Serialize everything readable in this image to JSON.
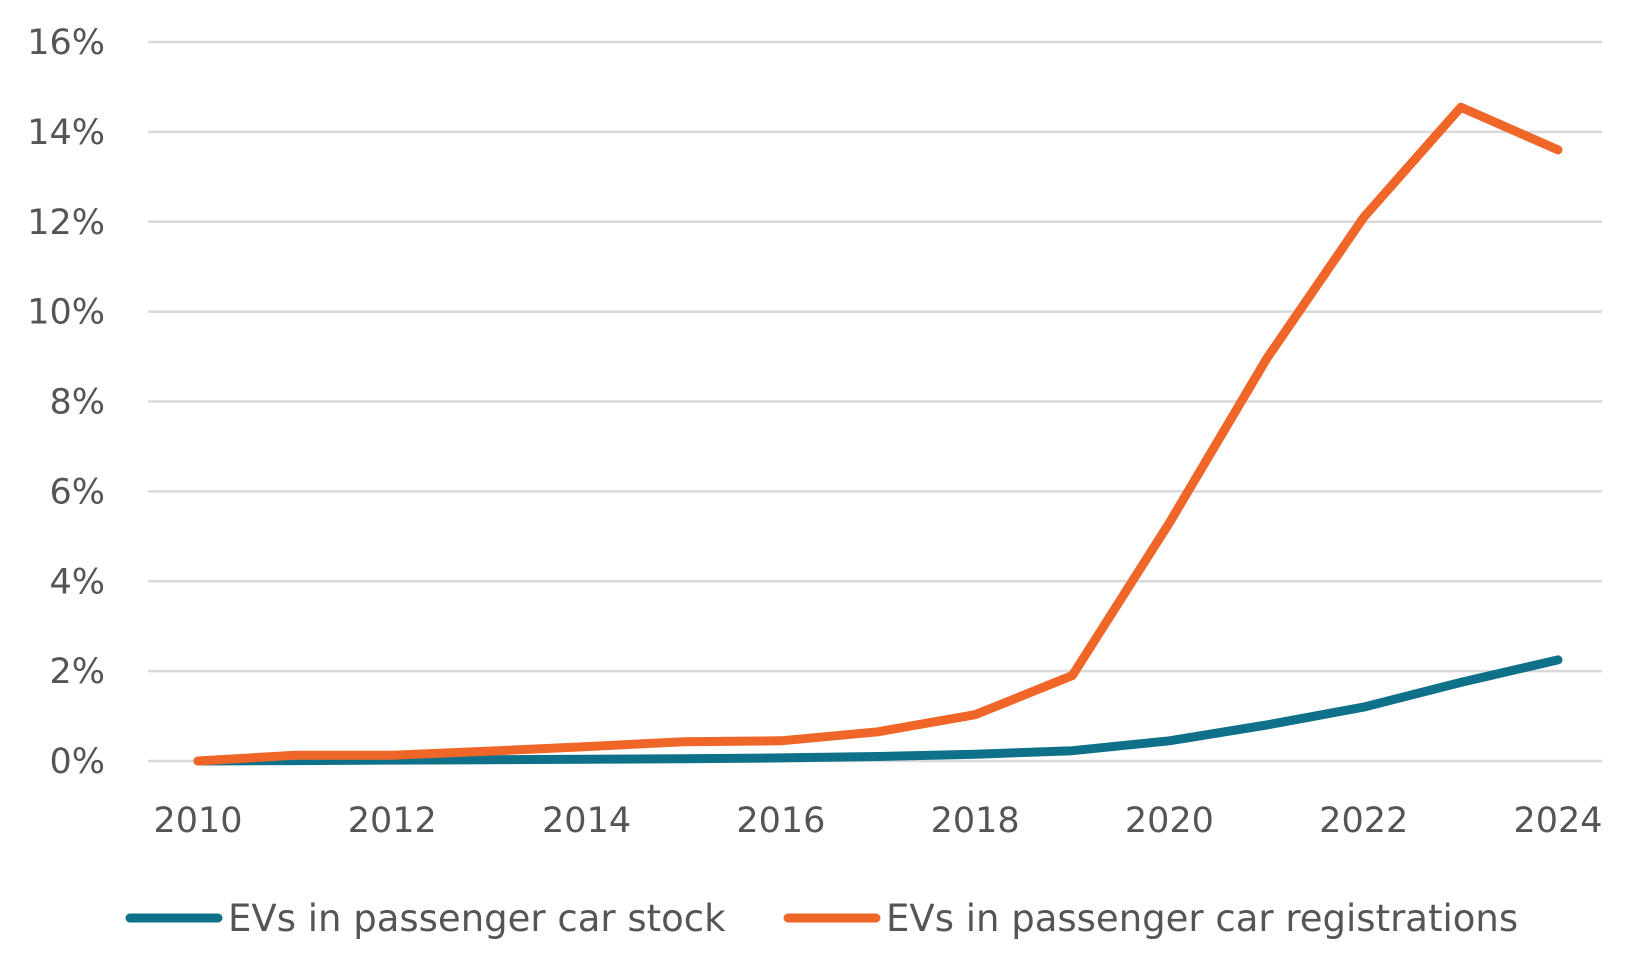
{
  "chart_data": {
    "type": "line",
    "title": "",
    "xlabel": "",
    "ylabel": "",
    "x": [
      2010,
      2011,
      2012,
      2013,
      2014,
      2015,
      2016,
      2017,
      2018,
      2019,
      2020,
      2021,
      2022,
      2023,
      2024
    ],
    "xticks": [
      2010,
      2012,
      2014,
      2016,
      2018,
      2020,
      2022,
      2024
    ],
    "xtick_labels": [
      "2010",
      "2012",
      "2014",
      "2016",
      "2018",
      "2020",
      "2022",
      "2024"
    ],
    "xlim": [
      2010,
      2024
    ],
    "yticks": [
      0,
      2,
      4,
      6,
      8,
      10,
      12,
      14,
      16
    ],
    "ytick_labels": [
      "0%",
      "2%",
      "4%",
      "6%",
      "8%",
      "10%",
      "12%",
      "14%",
      "16%"
    ],
    "ylim": [
      0,
      16
    ],
    "grid": true,
    "legend_position": "bottom",
    "series": [
      {
        "name": "EVs in passenger car stock",
        "color": "#0f7089",
        "values": [
          0.0,
          0.01,
          0.02,
          0.03,
          0.04,
          0.05,
          0.07,
          0.1,
          0.15,
          0.23,
          0.45,
          0.8,
          1.2,
          1.75,
          2.25
        ]
      },
      {
        "name": "EVs in passenger car registrations",
        "color": "#ef6628",
        "values": [
          0.0,
          0.13,
          0.13,
          0.22,
          0.32,
          0.43,
          0.45,
          0.65,
          1.03,
          1.9,
          5.3,
          8.95,
          12.1,
          14.55,
          13.6
        ]
      }
    ]
  }
}
